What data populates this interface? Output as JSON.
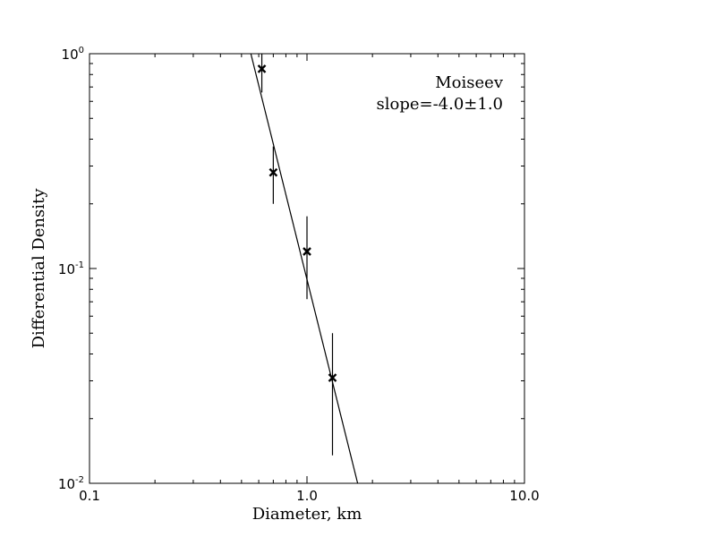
{
  "chart_data": {
    "type": "scatter",
    "xlabel": "Diameter, km",
    "ylabel": "Differential Density",
    "xscale": "log",
    "yscale": "log",
    "xlim": [
      0.1,
      10.0
    ],
    "ylim": [
      0.01,
      1.0
    ],
    "x_tick_labels": [
      "0.1",
      "1.0",
      "10.0"
    ],
    "y_tick_labels": [
      {
        "base": "10",
        "exp": "-2"
      },
      {
        "base": "10",
        "exp": "-1"
      },
      {
        "base": "10",
        "exp": "0"
      }
    ],
    "grid": false,
    "annotations": [
      "Moiseev",
      "slope=-4.0±1.0"
    ],
    "series": [
      {
        "marker": "x",
        "x": [
          0.62,
          0.7,
          1.0,
          1.31
        ],
        "y": [
          0.85,
          0.28,
          0.12,
          0.031
        ],
        "y_err_low": [
          0.66,
          0.2,
          0.072,
          0.0135
        ],
        "y_err_high": [
          1.0,
          0.37,
          0.175,
          0.05
        ]
      }
    ],
    "fit_line": {
      "slope": -4.0,
      "points": [
        [
          0.552,
          1.0
        ],
        [
          1.71,
          0.01
        ]
      ]
    }
  }
}
